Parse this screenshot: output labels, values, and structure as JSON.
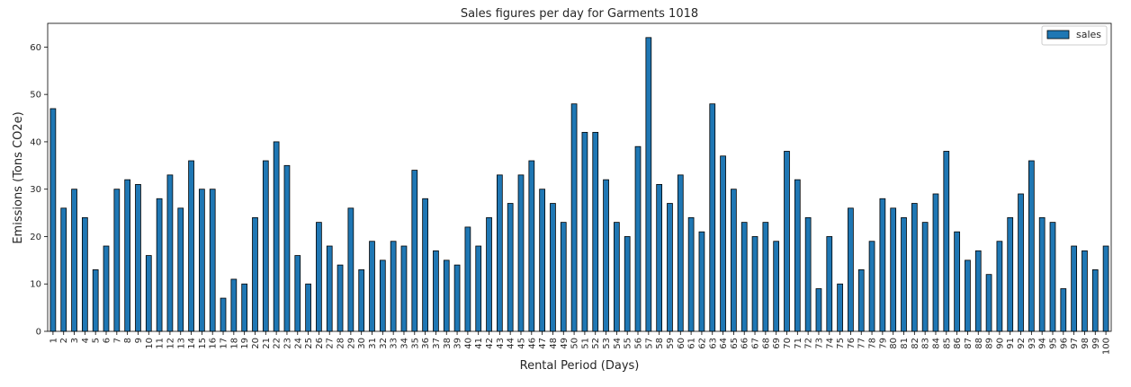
{
  "chart_data": {
    "type": "bar",
    "title": "Sales figures per day for Garments 1018",
    "xlabel": "Rental Period (Days)",
    "ylabel": "Emissions (Tons CO2e)",
    "ylim": [
      0,
      65
    ],
    "yticks": [
      0,
      10,
      20,
      30,
      40,
      50,
      60
    ],
    "grid": false,
    "legend_position": "top-right",
    "colors": {
      "bar": "#1f77b4",
      "edge": "#000000"
    },
    "categories": [
      "1",
      "2",
      "3",
      "4",
      "5",
      "6",
      "7",
      "8",
      "9",
      "10",
      "11",
      "12",
      "13",
      "14",
      "15",
      "16",
      "17",
      "18",
      "19",
      "20",
      "21",
      "22",
      "23",
      "24",
      "25",
      "26",
      "27",
      "28",
      "29",
      "30",
      "31",
      "32",
      "33",
      "34",
      "35",
      "36",
      "37",
      "38",
      "39",
      "40",
      "41",
      "42",
      "43",
      "44",
      "45",
      "46",
      "47",
      "48",
      "49",
      "50",
      "51",
      "52",
      "53",
      "54",
      "55",
      "56",
      "57",
      "58",
      "59",
      "60",
      "61",
      "62",
      "63",
      "64",
      "65",
      "66",
      "67",
      "68",
      "69",
      "70",
      "71",
      "72",
      "73",
      "74",
      "75",
      "76",
      "77",
      "78",
      "79",
      "80",
      "81",
      "82",
      "83",
      "84",
      "85",
      "86",
      "87",
      "88",
      "89",
      "90",
      "91",
      "92",
      "93",
      "94",
      "95",
      "96",
      "97",
      "98",
      "99",
      "100"
    ],
    "series": [
      {
        "name": "sales",
        "values": [
          47,
          26,
          30,
          24,
          13,
          18,
          30,
          32,
          31,
          16,
          28,
          33,
          26,
          36,
          30,
          30,
          7,
          11,
          10,
          24,
          36,
          40,
          35,
          16,
          10,
          23,
          18,
          14,
          26,
          13,
          19,
          15,
          19,
          18,
          34,
          28,
          17,
          15,
          14,
          22,
          18,
          24,
          33,
          27,
          33,
          36,
          30,
          27,
          23,
          48,
          42,
          42,
          32,
          23,
          20,
          39,
          62,
          31,
          27,
          33,
          24,
          21,
          48,
          37,
          30,
          23,
          20,
          23,
          19,
          38,
          32,
          24,
          9,
          20,
          10,
          26,
          13,
          19,
          28,
          26,
          24,
          27,
          23,
          29,
          38,
          21,
          15,
          17,
          12,
          19,
          24,
          29,
          36,
          24,
          23,
          9,
          18,
          17,
          13,
          18
        ]
      }
    ]
  }
}
